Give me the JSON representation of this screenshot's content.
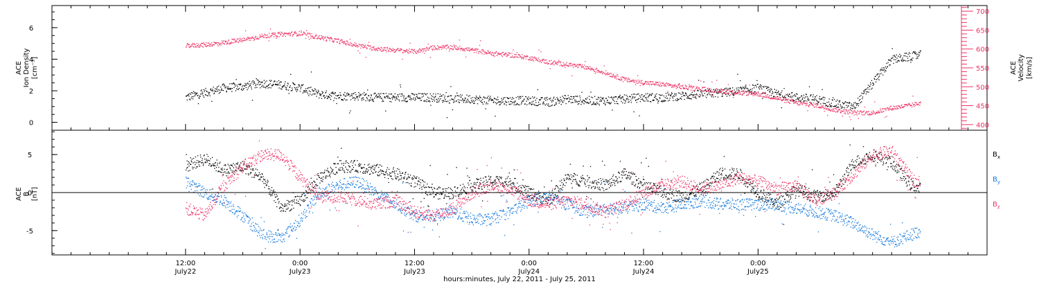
{
  "chart_data": [
    {
      "type": "scatter",
      "panel": "top",
      "ylabel_left": [
        "ACE",
        "Ion Density",
        "[cm⁻³]"
      ],
      "ylabel_right": [
        "ACE",
        "Velocity",
        "[km/s]"
      ],
      "ylim_left": [
        -0.5,
        7.4
      ],
      "ylim_right": [
        385,
        715
      ],
      "yticks_left": [
        "0",
        "2",
        "4",
        "6"
      ],
      "yticks_left_values": [
        0,
        2,
        4,
        6
      ],
      "yticks_right": [
        "400",
        "450",
        "500",
        "550",
        "600",
        "650",
        "700"
      ],
      "yticks_right_values": [
        400,
        450,
        500,
        550,
        600,
        650,
        700
      ],
      "colors": {
        "density": "#000000",
        "velocity": "#ee3366"
      },
      "series": [
        {
          "axis": "left",
          "color": "#000000",
          "x": [
            0,
            2,
            4,
            6,
            8,
            10,
            12,
            14,
            16,
            18,
            20,
            22,
            24,
            26,
            28,
            30,
            32,
            34,
            36,
            38,
            40,
            42,
            44,
            46,
            48,
            50,
            52,
            54,
            56,
            58,
            60,
            62,
            64,
            66,
            68,
            70,
            72,
            74,
            76,
            77
          ],
          "y": [
            1.6,
            1.9,
            2.2,
            2.3,
            2.5,
            2.4,
            2.2,
            1.8,
            1.7,
            1.7,
            1.6,
            1.6,
            1.6,
            1.6,
            1.5,
            1.5,
            1.4,
            1.4,
            1.4,
            1.3,
            1.5,
            1.4,
            1.4,
            1.5,
            1.6,
            1.6,
            1.7,
            1.8,
            1.9,
            2.0,
            2.2,
            1.8,
            1.6,
            1.5,
            1.2,
            1.0,
            2.5,
            4.0,
            4.2,
            4.3
          ]
        },
        {
          "axis": "right",
          "color": "#ee3366",
          "x": [
            0,
            2,
            4,
            6,
            8,
            10,
            12,
            14,
            16,
            18,
            20,
            22,
            24,
            26,
            28,
            30,
            32,
            34,
            36,
            38,
            40,
            42,
            44,
            46,
            48,
            50,
            52,
            54,
            56,
            58,
            60,
            62,
            64,
            66,
            68,
            70,
            72,
            74,
            76,
            77
          ],
          "y": [
            610,
            612,
            618,
            625,
            635,
            640,
            642,
            632,
            622,
            610,
            602,
            598,
            594,
            605,
            606,
            598,
            590,
            585,
            578,
            566,
            560,
            552,
            538,
            520,
            512,
            507,
            500,
            495,
            490,
            485,
            482,
            470,
            458,
            452,
            440,
            432,
            432,
            445,
            452,
            458
          ]
        }
      ]
    },
    {
      "type": "scatter",
      "panel": "bottom",
      "ylabel_left": [
        "ACE",
        "B",
        "[nT]"
      ],
      "ylim": [
        -8.2,
        8.2
      ],
      "yticks": [
        "-5",
        "0",
        "5"
      ],
      "yticks_values": [
        -5,
        0,
        5
      ],
      "zero_line": true,
      "legend": [
        "B",
        "B",
        "B"
      ],
      "legend_subscripts": [
        "x",
        "y",
        "z"
      ],
      "legend_placement": "right",
      "colors": {
        "Bx": "#000000",
        "By": "#1177dd",
        "Bz": "#ee3366"
      },
      "series": [
        {
          "color": "#000000",
          "x": [
            0,
            2,
            4,
            6,
            8,
            10,
            12,
            14,
            16,
            18,
            20,
            22,
            24,
            26,
            28,
            30,
            32,
            34,
            36,
            38,
            40,
            42,
            44,
            46,
            48,
            50,
            52,
            54,
            56,
            58,
            60,
            62,
            64,
            66,
            68,
            70,
            72,
            74,
            76,
            77
          ],
          "y": [
            3.5,
            4.5,
            3.0,
            3.5,
            2.0,
            -2.0,
            -1.0,
            2.0,
            3.5,
            3.5,
            3.0,
            2.5,
            1.5,
            0.0,
            0.0,
            1.0,
            1.5,
            1.5,
            0.0,
            -1.0,
            2.0,
            1.5,
            1.0,
            2.5,
            1.0,
            0.0,
            -0.5,
            0.5,
            2.5,
            2.5,
            0.0,
            -1.5,
            0.5,
            -0.5,
            0.0,
            4.0,
            5.0,
            4.0,
            1.0,
            0.5
          ]
        },
        {
          "color": "#1177dd",
          "x": [
            0,
            2,
            4,
            6,
            8,
            10,
            12,
            14,
            16,
            18,
            20,
            22,
            24,
            26,
            28,
            30,
            32,
            34,
            36,
            38,
            40,
            42,
            44,
            46,
            48,
            50,
            52,
            54,
            56,
            58,
            60,
            62,
            64,
            66,
            68,
            70,
            72,
            74,
            76,
            77
          ],
          "y": [
            1.5,
            0.0,
            -1.0,
            -3.0,
            -5.5,
            -6.0,
            -3.5,
            0.0,
            1.0,
            1.5,
            0.0,
            -1.5,
            -3.0,
            -3.0,
            -2.5,
            -3.5,
            -3.5,
            -2.5,
            -1.0,
            -0.5,
            -1.5,
            -2.5,
            -2.0,
            -2.0,
            -1.5,
            -2.0,
            -1.5,
            -1.0,
            -1.5,
            -1.5,
            -1.5,
            -1.5,
            -2.0,
            -2.5,
            -3.0,
            -4.0,
            -5.5,
            -6.5,
            -5.5,
            -5.0
          ]
        },
        {
          "color": "#ee3366",
          "x": [
            0,
            2,
            4,
            6,
            8,
            10,
            12,
            14,
            16,
            18,
            20,
            22,
            24,
            26,
            28,
            30,
            32,
            34,
            36,
            38,
            40,
            42,
            44,
            46,
            48,
            50,
            52,
            54,
            56,
            58,
            60,
            62,
            64,
            66,
            68,
            70,
            72,
            74,
            76,
            77
          ],
          "y": [
            -2.0,
            -3.0,
            1.0,
            3.5,
            5.0,
            5.0,
            2.0,
            -0.5,
            -0.5,
            -1.0,
            -1.5,
            -1.0,
            -2.5,
            -3.0,
            -2.0,
            0.0,
            1.0,
            0.5,
            -1.0,
            -1.5,
            -1.0,
            -1.5,
            -2.5,
            -1.5,
            0.0,
            1.0,
            1.5,
            0.5,
            1.0,
            2.0,
            1.5,
            0.5,
            1.0,
            -1.0,
            0.0,
            2.5,
            5.0,
            5.5,
            2.0,
            1.0
          ]
        }
      ]
    }
  ],
  "xaxis": {
    "range_hours": [
      -14,
      84
    ],
    "ticks": [
      {
        "hour": 0,
        "time": "12:00",
        "date": "July22"
      },
      {
        "hour": 12,
        "time": "0:00",
        "date": "July23"
      },
      {
        "hour": 24,
        "time": "12:00",
        "date": "July23"
      },
      {
        "hour": 36,
        "time": "0:00",
        "date": "July24"
      },
      {
        "hour": 48,
        "time": "12:00",
        "date": "July24"
      },
      {
        "hour": 60,
        "time": "0:00",
        "date": "July25"
      }
    ],
    "xlabel": "hours:minutes, July 22, 2011 - July 25, 2011"
  }
}
